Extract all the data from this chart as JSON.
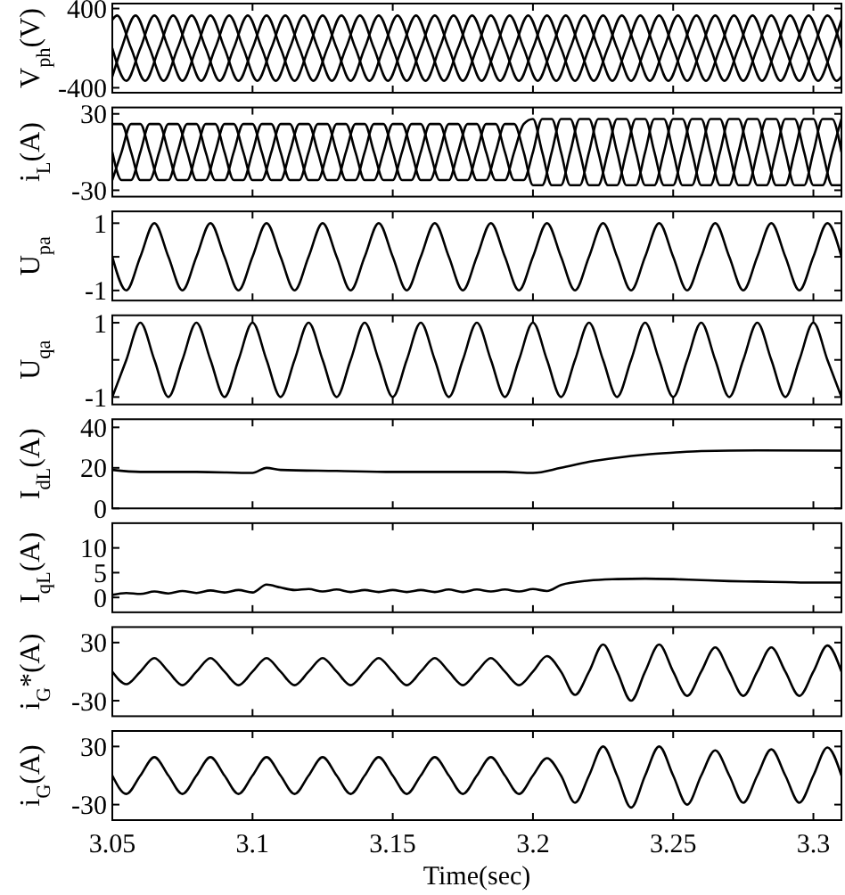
{
  "chart_data": [
    {
      "type": "line",
      "ylabel": "V$_{ph}$(V)",
      "xlim": [
        3.05,
        3.31
      ],
      "ylim": [
        -450,
        450
      ],
      "xticks": [
        3.05,
        3.1,
        3.15,
        3.2,
        3.25,
        3.3
      ],
      "yticks": [
        -400,
        400
      ],
      "tick_labels": "y",
      "series": [
        {
          "color": "#000000",
          "x": [
            3.05,
            3.055,
            3.06,
            3.065,
            3.07,
            3.075,
            3.08,
            3.085,
            3.09,
            3.095,
            3.1,
            3.105,
            3.11,
            3.115,
            3.12,
            3.125,
            3.13,
            3.135,
            3.14,
            3.145,
            3.15,
            3.155,
            3.16,
            3.165,
            3.17,
            3.175,
            3.18,
            3.185,
            3.19,
            3.195,
            3.2,
            3.205,
            3.21,
            3.215,
            3.22,
            3.225,
            3.23,
            3.235,
            3.24,
            3.245,
            3.25,
            3.255,
            3.26,
            3.265,
            3.27,
            3.275,
            3.28,
            3.285,
            3.29,
            3.295,
            3.3,
            3.305,
            3.31
          ],
          "values": [
            0,
            -330,
            0,
            330,
            0,
            -330,
            0,
            330,
            0,
            -330,
            0,
            330,
            0,
            -330,
            0,
            330,
            0,
            -330,
            0,
            330,
            0,
            -330,
            0,
            330,
            0,
            -330,
            0,
            330,
            0,
            -330,
            0,
            330,
            0,
            -330,
            0,
            330,
            0,
            -330,
            0,
            330,
            0,
            -330,
            0,
            330,
            0,
            -330,
            0,
            330,
            0,
            -330,
            0,
            330,
            0
          ]
        },
        {
          "color": "#000000",
          "x": [
            3.05,
            3.0517,
            3.0567,
            3.0617,
            3.0667,
            3.0717,
            3.0767,
            3.0817,
            3.0867,
            3.0917,
            3.0967,
            3.1017,
            3.1067,
            3.1117,
            3.1167,
            3.1217,
            3.1267,
            3.1317,
            3.1367,
            3.1417,
            3.1467,
            3.1517,
            3.1567,
            3.1617,
            3.1667,
            3.1717,
            3.1767,
            3.1817,
            3.1867,
            3.1917,
            3.1967,
            3.2017,
            3.2067,
            3.2117,
            3.2167,
            3.2217,
            3.2267,
            3.2317,
            3.2367,
            3.2417,
            3.2467,
            3.2517,
            3.2567,
            3.2617,
            3.2667,
            3.2717,
            3.2767,
            3.2817,
            3.2867,
            3.2917,
            3.2967,
            3.3017,
            3.3067,
            3.31
          ],
          "values": [
            286,
            330,
            0,
            -330,
            0,
            330,
            0,
            -330,
            0,
            330,
            0,
            -330,
            0,
            330,
            0,
            -330,
            0,
            330,
            0,
            -330,
            0,
            330,
            0,
            -330,
            0,
            330,
            0,
            -330,
            0,
            330,
            0,
            -330,
            0,
            330,
            0,
            -330,
            0,
            330,
            0,
            -330,
            0,
            330,
            0,
            -330,
            0,
            330,
            0,
            -330,
            0,
            330,
            0,
            -330,
            0,
            286
          ]
        },
        {
          "color": "#000000",
          "x": [
            3.05,
            3.0533,
            3.0583,
            3.0633,
            3.0683,
            3.0733,
            3.0783,
            3.0833,
            3.0883,
            3.0933,
            3.0983,
            3.1033,
            3.1083,
            3.1133,
            3.1183,
            3.1233,
            3.1283,
            3.1333,
            3.1383,
            3.1433,
            3.1483,
            3.1533,
            3.1583,
            3.1633,
            3.1683,
            3.1733,
            3.1783,
            3.1833,
            3.1883,
            3.1933,
            3.1983,
            3.2033,
            3.2083,
            3.2133,
            3.2183,
            3.2233,
            3.2283,
            3.2333,
            3.2383,
            3.2433,
            3.2483,
            3.2533,
            3.2583,
            3.2633,
            3.2683,
            3.2733,
            3.2783,
            3.2833,
            3.2883,
            3.2933,
            3.2983,
            3.3033,
            3.3083,
            3.31
          ],
          "values": [
            -286,
            0,
            330,
            0,
            -330,
            0,
            330,
            0,
            -330,
            0,
            330,
            0,
            -330,
            0,
            330,
            0,
            -330,
            0,
            330,
            0,
            -330,
            0,
            330,
            0,
            -330,
            0,
            330,
            0,
            -330,
            0,
            330,
            0,
            -330,
            0,
            330,
            0,
            -330,
            0,
            330,
            0,
            -330,
            0,
            330,
            0,
            -330,
            0,
            330,
            0,
            -330,
            0,
            330,
            0,
            -330,
            -286
          ]
        }
      ]
    },
    {
      "type": "line",
      "ylabel": "i$_{L}$(A)",
      "xlim": [
        3.05,
        3.31
      ],
      "ylim": [
        -35,
        35
      ],
      "xticks": [
        3.05,
        3.1,
        3.15,
        3.2,
        3.25,
        3.3
      ],
      "yticks": [
        -30,
        30
      ],
      "tick_labels": "y",
      "x": [
        3.05,
        3.0533,
        3.0567,
        3.06,
        3.0633,
        3.0667,
        3.07,
        3.0733,
        3.0767,
        3.08,
        3.0833,
        3.0867,
        3.09,
        3.0933,
        3.0967,
        3.1,
        3.1033,
        3.1067,
        3.11,
        3.1133,
        3.1167,
        3.12,
        3.1233,
        3.1267,
        3.13,
        3.1333,
        3.1367,
        3.14,
        3.1433,
        3.1467,
        3.15,
        3.1533,
        3.1567,
        3.16,
        3.1633,
        3.1667,
        3.17,
        3.1733,
        3.1767,
        3.18,
        3.1833,
        3.1867,
        3.19,
        3.1933,
        3.1967,
        3.2,
        3.2033,
        3.2067,
        3.21,
        3.2133,
        3.2167,
        3.22,
        3.2233,
        3.2267,
        3.23,
        3.2333,
        3.2367,
        3.24,
        3.2433,
        3.2467,
        3.25,
        3.2533,
        3.2567,
        3.26,
        3.2633,
        3.2667,
        3.27,
        3.2733,
        3.2767,
        3.28,
        3.2833,
        3.2867,
        3.29,
        3.2933,
        3.2967,
        3.3,
        3.3033,
        3.3067,
        3.31
      ],
      "series": [
        {
          "color": "#000000",
          "values": [
            0,
            -22,
            -22,
            0,
            22,
            22,
            0,
            -22,
            -22,
            0,
            22,
            22,
            0,
            -22,
            -22,
            0,
            22,
            22,
            0,
            -22,
            -22,
            0,
            22,
            22,
            0,
            -22,
            -22,
            0,
            22,
            22,
            0,
            -22,
            -22,
            0,
            22,
            22,
            0,
            -22,
            -22,
            0,
            22,
            22,
            0,
            -22,
            -22,
            0,
            26,
            26,
            0,
            -26,
            -26,
            0,
            26,
            26,
            0,
            -26,
            -26,
            0,
            26,
            26,
            0,
            -26,
            -26,
            0,
            26,
            26,
            0,
            -26,
            -26,
            0,
            26,
            26,
            0,
            -26,
            -26,
            0,
            26,
            26,
            0
          ]
        },
        {
          "color": "#000000",
          "values": [
            22,
            22,
            0,
            -22,
            -22,
            0,
            22,
            22,
            0,
            -22,
            -22,
            0,
            22,
            22,
            0,
            -22,
            -22,
            0,
            22,
            22,
            0,
            -22,
            -22,
            0,
            22,
            22,
            0,
            -22,
            -22,
            0,
            22,
            22,
            0,
            -22,
            -22,
            0,
            22,
            22,
            0,
            -22,
            -22,
            0,
            22,
            22,
            0,
            -26,
            -26,
            0,
            26,
            26,
            0,
            -26,
            -26,
            0,
            26,
            26,
            0,
            -26,
            -26,
            0,
            26,
            26,
            0,
            -26,
            -26,
            0,
            26,
            26,
            0,
            -26,
            -26,
            0,
            26,
            26,
            0,
            -26,
            -26,
            0,
            26
          ]
        },
        {
          "color": "#000000",
          "values": [
            -22,
            0,
            22,
            22,
            0,
            -22,
            -22,
            0,
            22,
            22,
            0,
            -22,
            -22,
            0,
            22,
            22,
            0,
            -22,
            -22,
            0,
            22,
            22,
            0,
            -22,
            -22,
            0,
            22,
            22,
            0,
            -22,
            -22,
            0,
            22,
            22,
            0,
            -22,
            -22,
            0,
            22,
            22,
            0,
            -22,
            -22,
            0,
            22,
            26,
            0,
            -26,
            -26,
            0,
            26,
            26,
            0,
            -26,
            -26,
            0,
            26,
            26,
            0,
            -26,
            -26,
            0,
            26,
            26,
            0,
            -26,
            -26,
            0,
            26,
            26,
            0,
            -26,
            -26,
            0,
            26,
            26,
            0,
            -26,
            -26
          ]
        }
      ]
    },
    {
      "type": "line",
      "ylabel": "U$_{pa}$",
      "xlim": [
        3.05,
        3.31
      ],
      "ylim": [
        -1.3,
        1.35
      ],
      "xticks": [
        3.05,
        3.1,
        3.15,
        3.2,
        3.25,
        3.3
      ],
      "yticks": [
        -1,
        {
          "value": 0,
          "label": null
        },
        1
      ],
      "tick_labels": "y",
      "x": [
        3.05,
        3.055,
        3.06,
        3.065,
        3.07,
        3.075,
        3.08,
        3.085,
        3.09,
        3.095,
        3.1,
        3.105,
        3.11,
        3.115,
        3.12,
        3.125,
        3.13,
        3.135,
        3.14,
        3.145,
        3.15,
        3.155,
        3.16,
        3.165,
        3.17,
        3.175,
        3.18,
        3.185,
        3.19,
        3.195,
        3.2,
        3.205,
        3.21,
        3.215,
        3.22,
        3.225,
        3.23,
        3.235,
        3.24,
        3.245,
        3.25,
        3.255,
        3.26,
        3.265,
        3.27,
        3.275,
        3.28,
        3.285,
        3.29,
        3.295,
        3.3,
        3.305,
        3.31
      ],
      "series": [
        {
          "color": "#000000",
          "values": [
            0,
            -1,
            0,
            1,
            0,
            -1,
            0,
            1,
            0,
            -1,
            0,
            1,
            0,
            -1,
            0,
            1,
            0,
            -1,
            0,
            1,
            0,
            -1,
            0,
            1,
            0,
            -1,
            0,
            1,
            0,
            -1,
            0,
            1,
            0,
            -1,
            0,
            1,
            0,
            -1,
            0,
            1,
            0,
            -1,
            0,
            1,
            0,
            -1,
            0,
            1,
            0,
            -1,
            0,
            1,
            0
          ]
        }
      ]
    },
    {
      "type": "line",
      "ylabel": "U$_{qa}$",
      "xlim": [
        3.05,
        3.31
      ],
      "ylim": [
        -1.2,
        1.2
      ],
      "xticks": [
        3.05,
        3.1,
        3.15,
        3.2,
        3.25,
        3.3
      ],
      "yticks": [
        -1,
        {
          "value": 0,
          "label": null
        },
        1
      ],
      "tick_labels": "y",
      "x": [
        3.05,
        3.055,
        3.06,
        3.065,
        3.07,
        3.075,
        3.08,
        3.085,
        3.09,
        3.095,
        3.1,
        3.105,
        3.11,
        3.115,
        3.12,
        3.125,
        3.13,
        3.135,
        3.14,
        3.145,
        3.15,
        3.155,
        3.16,
        3.165,
        3.17,
        3.175,
        3.18,
        3.185,
        3.19,
        3.195,
        3.2,
        3.205,
        3.21,
        3.215,
        3.22,
        3.225,
        3.23,
        3.235,
        3.24,
        3.245,
        3.25,
        3.255,
        3.26,
        3.265,
        3.27,
        3.275,
        3.28,
        3.285,
        3.29,
        3.295,
        3.3,
        3.305,
        3.31
      ],
      "series": [
        {
          "color": "#000000",
          "values": [
            -1,
            0,
            1,
            0,
            -1,
            0,
            1,
            0,
            -1,
            0,
            1,
            0,
            -1,
            0,
            1,
            0,
            -1,
            0,
            1,
            0,
            -1,
            0,
            1,
            0,
            -1,
            0,
            1,
            0,
            -1,
            0,
            1,
            0,
            -1,
            0,
            1,
            0,
            -1,
            0,
            1,
            0,
            -1,
            0,
            1,
            0,
            -1,
            0,
            1,
            0,
            -1,
            0,
            1,
            0,
            -1
          ]
        }
      ]
    },
    {
      "type": "line",
      "ylabel": "I$_{dL}$(A)",
      "xlim": [
        3.05,
        3.31
      ],
      "ylim": [
        0,
        44
      ],
      "xticks": [
        3.05,
        3.1,
        3.15,
        3.2,
        3.25,
        3.3
      ],
      "yticks": [
        0,
        20,
        40
      ],
      "tick_labels": "y",
      "x": [
        3.05,
        3.06,
        3.08,
        3.1,
        3.105,
        3.11,
        3.13,
        3.15,
        3.17,
        3.19,
        3.2,
        3.21,
        3.22,
        3.23,
        3.24,
        3.25,
        3.26,
        3.28,
        3.31
      ],
      "series": [
        {
          "color": "#000000",
          "values": [
            19,
            18,
            18,
            17.5,
            20,
            19,
            18.5,
            18,
            18,
            18,
            17.5,
            20,
            23,
            25,
            26.5,
            27.5,
            28.3,
            28.6,
            28.5
          ]
        }
      ]
    },
    {
      "type": "line",
      "ylabel": "I$_{qL}$(A)",
      "xlim": [
        3.05,
        3.31
      ],
      "ylim": [
        -3,
        15
      ],
      "xticks": [
        3.05,
        3.1,
        3.15,
        3.2,
        3.25,
        3.3
      ],
      "yticks": [
        0,
        5,
        10
      ],
      "tick_labels": "y",
      "x": [
        3.05,
        3.055,
        3.06,
        3.065,
        3.07,
        3.075,
        3.08,
        3.085,
        3.09,
        3.095,
        3.1,
        3.105,
        3.11,
        3.115,
        3.12,
        3.125,
        3.13,
        3.135,
        3.14,
        3.145,
        3.15,
        3.155,
        3.16,
        3.165,
        3.17,
        3.175,
        3.18,
        3.185,
        3.19,
        3.195,
        3.2,
        3.205,
        3.21,
        3.22,
        3.23,
        3.24,
        3.25,
        3.26,
        3.27,
        3.28,
        3.29,
        3.3,
        3.31
      ],
      "series": [
        {
          "color": "#000000",
          "values": [
            0.5,
            0.9,
            0.7,
            1.2,
            0.8,
            1.3,
            0.9,
            1.4,
            1,
            1.5,
            1,
            2.6,
            2,
            1.5,
            1.7,
            1.2,
            1.6,
            1.1,
            1.5,
            1.1,
            1.5,
            1.1,
            1.5,
            1.1,
            1.6,
            1.1,
            1.6,
            1.2,
            1.6,
            1.2,
            1.7,
            1.3,
            2.5,
            3.4,
            3.7,
            3.8,
            3.7,
            3.5,
            3.3,
            3.2,
            3.1,
            3,
            3
          ]
        }
      ]
    },
    {
      "type": "line",
      "ylabel": "i$_{G}$*(A)",
      "xlim": [
        3.05,
        3.31
      ],
      "ylim": [
        -46,
        46
      ],
      "xticks": [
        3.05,
        3.1,
        3.15,
        3.2,
        3.25,
        3.3
      ],
      "yticks": [
        -30,
        30
      ],
      "tick_labels": "y",
      "x": [
        3.05,
        3.055,
        3.06,
        3.065,
        3.07,
        3.075,
        3.08,
        3.085,
        3.09,
        3.095,
        3.1,
        3.105,
        3.11,
        3.115,
        3.12,
        3.125,
        3.13,
        3.135,
        3.14,
        3.145,
        3.15,
        3.155,
        3.16,
        3.165,
        3.17,
        3.175,
        3.18,
        3.185,
        3.19,
        3.195,
        3.2,
        3.205,
        3.21,
        3.215,
        3.22,
        3.225,
        3.23,
        3.235,
        3.24,
        3.245,
        3.25,
        3.255,
        3.26,
        3.265,
        3.27,
        3.275,
        3.28,
        3.285,
        3.29,
        3.295,
        3.3,
        3.305,
        3.31
      ],
      "series": [
        {
          "color": "#000000",
          "values": [
            0,
            -13,
            0,
            14,
            0,
            -14,
            0,
            14,
            0,
            -14,
            0,
            14,
            0,
            -14,
            0,
            14,
            0,
            -14,
            0,
            14,
            0,
            -14,
            0,
            14,
            0,
            -14,
            0,
            14,
            0,
            -14,
            0,
            16,
            0,
            -24,
            0,
            28,
            0,
            -30,
            0,
            28,
            0,
            -25,
            0,
            25,
            0,
            -25,
            0,
            25,
            0,
            -25,
            0,
            27,
            0
          ]
        }
      ]
    },
    {
      "type": "line",
      "ylabel": "i$_{G}$(A)",
      "xlabel": "Time(sec)",
      "xlim": [
        3.05,
        3.31
      ],
      "ylim": [
        -46,
        46
      ],
      "xticks": [
        3.05,
        3.1,
        3.15,
        3.2,
        3.25,
        3.3
      ],
      "yticks": [
        -30,
        30
      ],
      "x": [
        3.05,
        3.055,
        3.06,
        3.065,
        3.07,
        3.075,
        3.08,
        3.085,
        3.09,
        3.095,
        3.1,
        3.105,
        3.11,
        3.115,
        3.12,
        3.125,
        3.13,
        3.135,
        3.14,
        3.145,
        3.15,
        3.155,
        3.16,
        3.165,
        3.17,
        3.175,
        3.18,
        3.185,
        3.19,
        3.195,
        3.2,
        3.205,
        3.21,
        3.215,
        3.22,
        3.225,
        3.23,
        3.235,
        3.24,
        3.245,
        3.25,
        3.255,
        3.26,
        3.265,
        3.27,
        3.275,
        3.28,
        3.285,
        3.29,
        3.295,
        3.3,
        3.305,
        3.31
      ],
      "series": [
        {
          "color": "#000000",
          "values": [
            0,
            -19,
            0,
            19,
            0,
            -19,
            0,
            19,
            0,
            -19,
            0,
            19,
            0,
            -19,
            0,
            19,
            0,
            -19,
            0,
            19,
            0,
            -19,
            0,
            19,
            0,
            -19,
            0,
            19,
            0,
            -19,
            0,
            18,
            0,
            -28,
            0,
            30,
            0,
            -33,
            0,
            30,
            0,
            -30,
            0,
            26,
            0,
            -28,
            0,
            27,
            0,
            -28,
            0,
            29,
            0
          ]
        }
      ]
    }
  ]
}
